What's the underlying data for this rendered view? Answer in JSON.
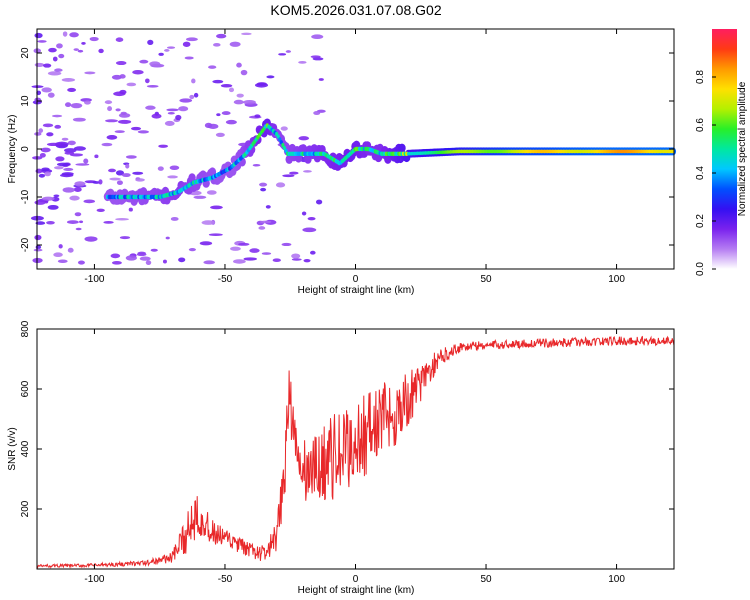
{
  "title": "KOM5.2026.031.07.08.G02",
  "chart_data": [
    {
      "type": "heatmap",
      "xlabel": "Height of straight line (km)",
      "ylabel": "Frequency (Hz)",
      "xlim": [
        -122,
        122
      ],
      "ylim": [
        -25,
        25
      ],
      "x_ticks": [
        -100,
        -50,
        0,
        50,
        100
      ],
      "y_ticks": [
        -20,
        -10,
        0,
        10,
        20
      ],
      "colorbar": {
        "label": "Normalized spectral amplitude",
        "range": [
          0,
          1
        ],
        "ticks": [
          0.0,
          0.2,
          0.4,
          0.6,
          0.8
        ],
        "colors": [
          "#ffffff",
          "#b57cf2",
          "#7a22ee",
          "#3410f2",
          "#0050ff",
          "#00c8ff",
          "#00e8a0",
          "#28f028",
          "#b4f000",
          "#ffe000",
          "#ff9a00",
          "#ff3a14",
          "#ff1e60"
        ]
      },
      "ridge": {
        "x": [
          -95,
          -85,
          -75,
          -68,
          -62,
          -55,
          -48,
          -42,
          -38,
          -34,
          -30,
          -26,
          -20,
          -12,
          -6,
          0,
          5,
          10,
          20,
          40,
          60,
          80,
          100,
          122
        ],
        "freq_hz": [
          -10,
          -10,
          -10,
          -9,
          -7,
          -6,
          -4,
          -1,
          2,
          5,
          3,
          -1,
          -1,
          -1,
          -3,
          0,
          0,
          -1,
          -1,
          -0.5,
          -0.5,
          -0.5,
          -0.5,
          -0.5
        ],
        "amplitude": [
          0.25,
          0.28,
          0.3,
          0.32,
          0.3,
          0.28,
          0.25,
          0.3,
          0.35,
          0.42,
          0.3,
          0.3,
          0.32,
          0.35,
          0.38,
          0.4,
          0.35,
          0.35,
          0.5,
          0.6,
          0.7,
          0.75,
          0.78,
          0.78
        ]
      }
    },
    {
      "type": "line",
      "xlabel": "Height of straight line (km)",
      "ylabel": "SNR (v/v)",
      "xlim": [
        -122,
        122
      ],
      "ylim": [
        0,
        800
      ],
      "x_ticks": [
        -100,
        -50,
        0,
        50,
        100
      ],
      "y_ticks": [
        200,
        400,
        600,
        800
      ],
      "color": "#e8282a",
      "envelope": {
        "x": [
          -122,
          -100,
          -80,
          -70,
          -65,
          -62,
          -60,
          -58,
          -55,
          -50,
          -45,
          -40,
          -35,
          -30,
          -28,
          -26,
          -25,
          -24,
          -22,
          -20,
          -15,
          -10,
          -5,
          0,
          5,
          10,
          15,
          20,
          25,
          30,
          35,
          40,
          50,
          60,
          80,
          100,
          122
        ],
        "y": [
          10,
          12,
          20,
          40,
          110,
          180,
          200,
          150,
          120,
          100,
          80,
          60,
          50,
          100,
          250,
          500,
          650,
          450,
          350,
          320,
          330,
          370,
          380,
          420,
          460,
          500,
          520,
          560,
          620,
          680,
          720,
          740,
          745,
          750,
          755,
          760,
          760
        ],
        "noise": [
          5,
          6,
          8,
          20,
          60,
          90,
          80,
          60,
          45,
          35,
          30,
          25,
          30,
          60,
          120,
          150,
          160,
          120,
          100,
          110,
          120,
          140,
          150,
          140,
          140,
          130,
          120,
          100,
          60,
          40,
          25,
          18,
          15,
          15,
          15,
          15,
          15
        ]
      }
    }
  ]
}
